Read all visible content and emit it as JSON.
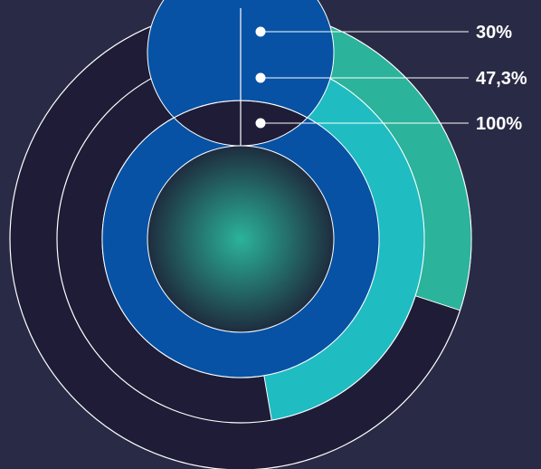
{
  "chart_data": {
    "type": "radial-bar",
    "series": [
      {
        "label": "30%",
        "value": 30,
        "color": "#2bb39b"
      },
      {
        "label": "47,3%",
        "value": 47.3,
        "color": "#1fbcc2"
      },
      {
        "label": "100%",
        "value": 100,
        "color": "#0752a4"
      }
    ],
    "colors": {
      "background": "#292a45",
      "track": "#1e1c37",
      "center_gradient_inner": "#2bb39b",
      "center_gradient_outer": "#1e2c3e",
      "stroke": "#ffffff"
    }
  }
}
